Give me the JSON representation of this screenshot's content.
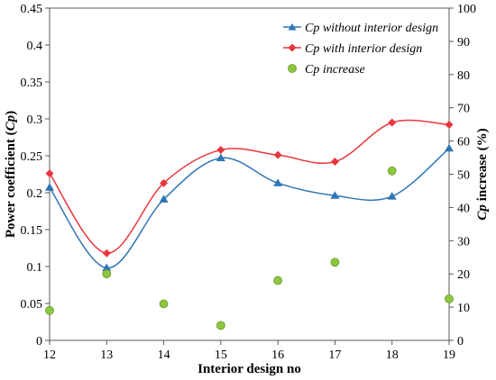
{
  "chart_data": {
    "type": "line",
    "xlabel": "Interior design no",
    "ylabel_left": "Power coefficient (Cp)",
    "ylabel_left_parts": {
      "pre": "Power coefficient (",
      "em": "Cp",
      "post": ")"
    },
    "ylabel_right": "Cp increase (%)",
    "ylabel_right_parts": {
      "em": "Cp",
      "post": " increase (%)"
    },
    "x": [
      12,
      13,
      14,
      15,
      16,
      17,
      18,
      19
    ],
    "xlim": [
      12,
      19
    ],
    "x_ticks": [
      "12",
      "13",
      "14",
      "15",
      "16",
      "17",
      "18",
      "19"
    ],
    "ylim_left": [
      0,
      0.45
    ],
    "y_ticks_left": [
      "0",
      "0.05",
      "0.1",
      "0.15",
      "0.2",
      "0.25",
      "0.3",
      "0.35",
      "0.4",
      "0.45"
    ],
    "ylim_right": [
      0,
      100
    ],
    "y_ticks_right": [
      "0",
      "10",
      "20",
      "30",
      "40",
      "50",
      "60",
      "70",
      "80",
      "90",
      "100"
    ],
    "grid": false,
    "legend_position": "top-right",
    "series": [
      {
        "name": "Cp without interior design",
        "axis": "left",
        "marker": "triangle",
        "color": "#2e75b6",
        "values": [
          0.207,
          0.098,
          0.191,
          0.247,
          0.213,
          0.196,
          0.195,
          0.26
        ]
      },
      {
        "name": "Cp with interior design",
        "axis": "left",
        "marker": "diamond",
        "color": "#e8363c",
        "values": [
          0.226,
          0.118,
          0.213,
          0.258,
          0.251,
          0.242,
          0.295,
          0.292
        ]
      },
      {
        "name": "Cp increase",
        "axis": "right",
        "marker": "circle",
        "color": "#8dc63f",
        "values": [
          9,
          20,
          11,
          4.5,
          18,
          23.5,
          51,
          12.5
        ]
      }
    ]
  }
}
